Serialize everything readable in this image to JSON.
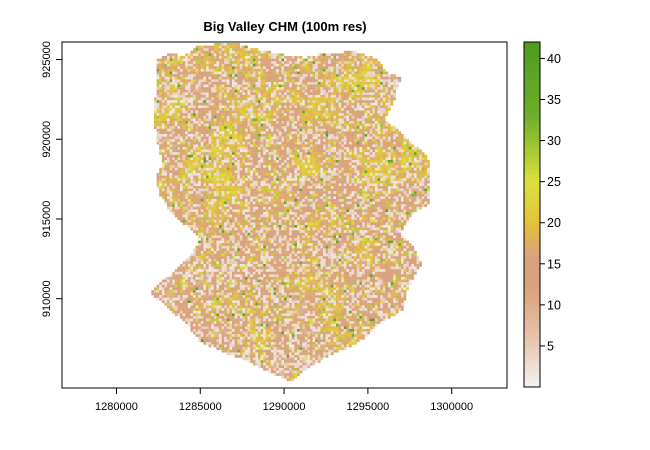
{
  "chart_data": {
    "type": "heatmap",
    "title": "Big Valley CHM (100m res)",
    "xlabel": "",
    "ylabel": "",
    "x_ticks": [
      "1280000",
      "1285000",
      "1290000",
      "1295000",
      "1300000"
    ],
    "y_ticks": [
      "910000",
      "915000",
      "920000",
      "925000"
    ],
    "xlim": [
      1276750,
      1303300
    ],
    "ylim": [
      904400,
      926100
    ],
    "value_range": [
      0,
      42
    ],
    "legend_ticks": [
      "5",
      "10",
      "15",
      "20",
      "25",
      "30",
      "35",
      "40"
    ],
    "grid": false,
    "legend_placement": "right",
    "colors": {
      "low": "#f2f2f2",
      "mid_low": "#e6c3ab",
      "mid": "#d9a27d",
      "mid_high": "#e3c23a",
      "high_yellow": "#dbe03a",
      "high": "#6fae2c",
      "max": "#4f9a1f"
    },
    "boundary_outline": [
      [
        1282300,
        922200
      ],
      [
        1282400,
        925000
      ],
      [
        1283300,
        925400
      ],
      [
        1284000,
        925200
      ],
      [
        1284800,
        925800
      ],
      [
        1286000,
        926000
      ],
      [
        1287200,
        926000
      ],
      [
        1288500,
        925600
      ],
      [
        1290000,
        925300
      ],
      [
        1291300,
        925100
      ],
      [
        1292300,
        925400
      ],
      [
        1294300,
        925500
      ],
      [
        1295600,
        925000
      ],
      [
        1296200,
        924100
      ],
      [
        1297000,
        923900
      ],
      [
        1296500,
        922200
      ],
      [
        1296000,
        921300
      ],
      [
        1297600,
        919800
      ],
      [
        1298600,
        918900
      ],
      [
        1298700,
        916000
      ],
      [
        1297600,
        915300
      ],
      [
        1296900,
        914000
      ],
      [
        1297500,
        913600
      ],
      [
        1298200,
        912200
      ],
      [
        1297300,
        910500
      ],
      [
        1297100,
        909300
      ],
      [
        1295600,
        908400
      ],
      [
        1294400,
        907200
      ],
      [
        1293000,
        906600
      ],
      [
        1291500,
        905700
      ],
      [
        1290400,
        904800
      ],
      [
        1289300,
        905300
      ],
      [
        1288000,
        906000
      ],
      [
        1286500,
        906600
      ],
      [
        1285000,
        907300
      ],
      [
        1284200,
        908400
      ],
      [
        1283000,
        909500
      ],
      [
        1282000,
        910400
      ],
      [
        1282600,
        911000
      ],
      [
        1283500,
        911800
      ],
      [
        1284500,
        912900
      ],
      [
        1285000,
        913700
      ],
      [
        1284600,
        914200
      ],
      [
        1283300,
        915300
      ],
      [
        1282600,
        916500
      ],
      [
        1282300,
        917600
      ],
      [
        1282800,
        918500
      ],
      [
        1282500,
        919400
      ],
      [
        1282300,
        920800
      ]
    ]
  }
}
